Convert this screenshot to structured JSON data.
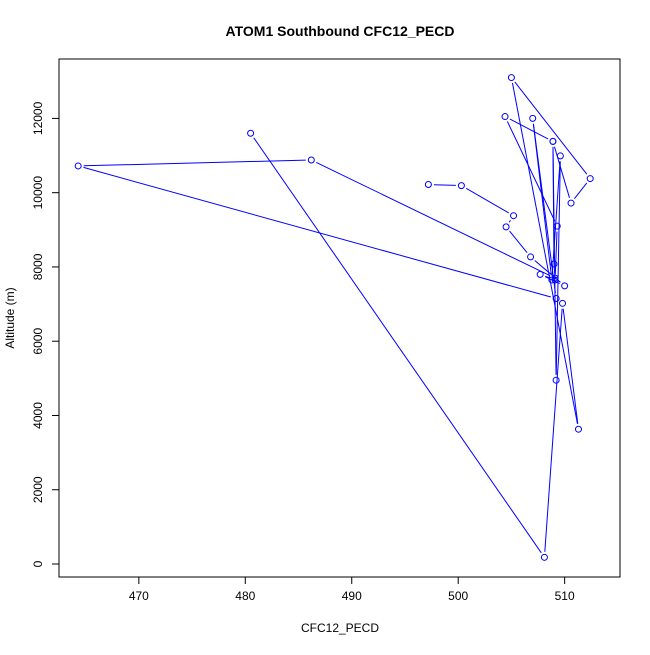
{
  "chart_data": {
    "type": "line",
    "title": "ATOM1 Southbound CFC12_PECD",
    "xlabel": "CFC12_PECD",
    "ylabel": "Altitude (m)",
    "xlim": [
      462.5,
      515.2
    ],
    "ylim": [
      -350,
      13600
    ],
    "x_ticks": [
      470,
      480,
      490,
      500,
      510
    ],
    "y_ticks": [
      0,
      2000,
      4000,
      6000,
      8000,
      10000,
      12000
    ],
    "grid": false,
    "legend": "none",
    "series_color": "#0000ff",
    "markers": "open-circle",
    "series": [
      {
        "x": [
          497.2,
          500.3,
          505.2,
          504.5,
          506.8,
          510.0,
          507.7,
          509.1,
          509.3,
          504.4,
          508.9,
          509.0,
          509.1,
          486.2,
          464.3,
          509.2,
          507.0,
          508.8,
          509.6,
          509.2,
          508.9,
          510.6,
          512.4,
          505.0,
          511.3,
          509.8,
          508.1,
          480.5
        ],
        "y": [
          10220,
          10190,
          9380,
          9080,
          8270,
          7490,
          7800,
          7650,
          9100,
          12050,
          11380,
          8080,
          7700,
          10880,
          10720,
          7150,
          12000,
          7650,
          10990,
          4950,
          11380,
          9720,
          10380,
          13100,
          3630,
          7020,
          180,
          11600
        ]
      }
    ]
  }
}
